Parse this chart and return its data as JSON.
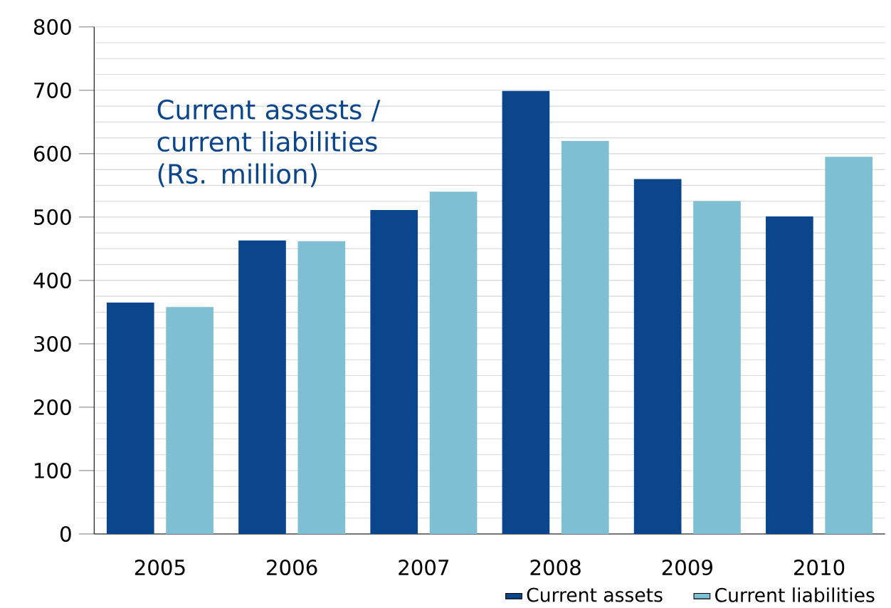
{
  "chart_data": {
    "type": "bar",
    "categories": [
      "2005",
      "2006",
      "2007",
      "2008",
      "2009",
      "2010"
    ],
    "series": [
      {
        "name": "Current assets",
        "color": "#0b468c",
        "values": [
          365,
          463,
          511,
          699,
          560,
          501
        ]
      },
      {
        "name": "Current liabilities",
        "color": "#7fbfd4",
        "values": [
          358,
          462,
          540,
          620,
          525,
          595
        ]
      }
    ],
    "annotations": [
      "Current assests / current liabilities (Rs. million)"
    ],
    "ylim": [
      0,
      800
    ],
    "yticks": [
      0,
      100,
      200,
      300,
      400,
      500,
      600,
      700,
      800
    ],
    "grid": "y",
    "legend": "bottom right"
  }
}
